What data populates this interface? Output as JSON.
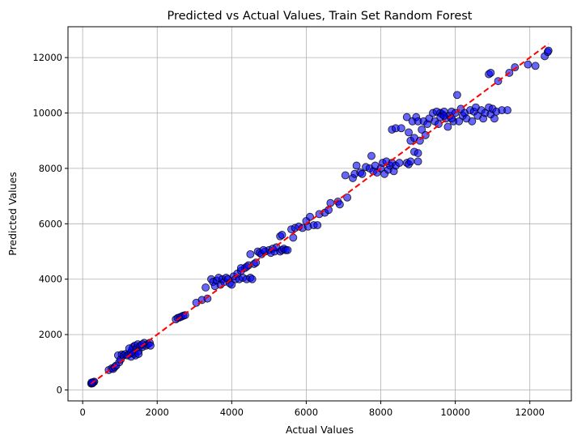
{
  "chart_data": {
    "type": "scatter",
    "title": "Predicted vs Actual Values, Train Set Random Forest",
    "xlabel": "Actual Values",
    "ylabel": "Predicted Values",
    "xlim": [
      -394,
      13114
    ],
    "ylim": [
      -394,
      13114
    ],
    "xticks": [
      0,
      2000,
      4000,
      6000,
      8000,
      10000,
      12000
    ],
    "yticks": [
      0,
      2000,
      4000,
      6000,
      8000,
      10000,
      12000
    ],
    "grid": true,
    "point_color": "#0000ff",
    "point_edge_color": "#000000",
    "point_alpha": 0.6,
    "reference_line": {
      "x": [
        220,
        12500
      ],
      "y": [
        220,
        12500
      ],
      "color": "#ff0000",
      "style": "dashed"
    },
    "points": [
      [
        230,
        230
      ],
      [
        250,
        250
      ],
      [
        270,
        260
      ],
      [
        290,
        280
      ],
      [
        310,
        300
      ],
      [
        260,
        240
      ],
      [
        240,
        270
      ],
      [
        700,
        720
      ],
      [
        780,
        780
      ],
      [
        820,
        760
      ],
      [
        860,
        830
      ],
      [
        900,
        880
      ],
      [
        950,
        1250
      ],
      [
        980,
        1000
      ],
      [
        1020,
        1100
      ],
      [
        1050,
        1280
      ],
      [
        1100,
        1250
      ],
      [
        1150,
        1300
      ],
      [
        1200,
        1250
      ],
      [
        1250,
        1300
      ],
      [
        1300,
        1200
      ],
      [
        1320,
        1450
      ],
      [
        1350,
        1550
      ],
      [
        1380,
        1300
      ],
      [
        1400,
        1600
      ],
      [
        1420,
        1250
      ],
      [
        1450,
        1500
      ],
      [
        1480,
        1650
      ],
      [
        1500,
        1400
      ],
      [
        1550,
        1600
      ],
      [
        1600,
        1550
      ],
      [
        1650,
        1700
      ],
      [
        1700,
        1600
      ],
      [
        1750,
        1650
      ],
      [
        1800,
        1700
      ],
      [
        1820,
        1600
      ],
      [
        1300,
        1350
      ],
      [
        1250,
        1500
      ],
      [
        1500,
        1300
      ],
      [
        1600,
        1650
      ],
      [
        2500,
        2550
      ],
      [
        2550,
        2600
      ],
      [
        2600,
        2620
      ],
      [
        2650,
        2650
      ],
      [
        2700,
        2680
      ],
      [
        2750,
        2700
      ],
      [
        3050,
        3150
      ],
      [
        3200,
        3250
      ],
      [
        3300,
        3700
      ],
      [
        3350,
        3300
      ],
      [
        3450,
        4000
      ],
      [
        3500,
        3900
      ],
      [
        3550,
        3750
      ],
      [
        3600,
        3950
      ],
      [
        3650,
        4050
      ],
      [
        3700,
        3800
      ],
      [
        3750,
        4000
      ],
      [
        3800,
        3900
      ],
      [
        3850,
        4050
      ],
      [
        3900,
        4000
      ],
      [
        3950,
        3850
      ],
      [
        4000,
        3800
      ],
      [
        4050,
        4100
      ],
      [
        4100,
        4000
      ],
      [
        4150,
        4200
      ],
      [
        4200,
        4000
      ],
      [
        4250,
        4300
      ],
      [
        4300,
        4050
      ],
      [
        4350,
        4400
      ],
      [
        4400,
        4000
      ],
      [
        4450,
        4500
      ],
      [
        4500,
        4050
      ],
      [
        4550,
        4000
      ],
      [
        4250,
        4400
      ],
      [
        4400,
        4450
      ],
      [
        4500,
        4900
      ],
      [
        4600,
        4550
      ],
      [
        4650,
        4600
      ],
      [
        4700,
        5000
      ],
      [
        4750,
        4950
      ],
      [
        4800,
        4900
      ],
      [
        4900,
        5000
      ],
      [
        5000,
        5050
      ],
      [
        5050,
        4950
      ],
      [
        5100,
        5100
      ],
      [
        5150,
        5000
      ],
      [
        5200,
        5150
      ],
      [
        5300,
        5000
      ],
      [
        5350,
        5050
      ],
      [
        5400,
        5100
      ],
      [
        5450,
        5050
      ],
      [
        5300,
        5550
      ],
      [
        5350,
        5600
      ],
      [
        5500,
        5050
      ],
      [
        4850,
        5050
      ],
      [
        5600,
        5800
      ],
      [
        5650,
        5500
      ],
      [
        5700,
        5850
      ],
      [
        5800,
        5900
      ],
      [
        5900,
        5850
      ],
      [
        6000,
        6100
      ],
      [
        6050,
        5900
      ],
      [
        6100,
        6250
      ],
      [
        6200,
        5950
      ],
      [
        6300,
        5950
      ],
      [
        6350,
        6350
      ],
      [
        6500,
        6400
      ],
      [
        6600,
        6500
      ],
      [
        6650,
        6750
      ],
      [
        6850,
        6800
      ],
      [
        6900,
        6700
      ],
      [
        7100,
        6950
      ],
      [
        7050,
        7750
      ],
      [
        7250,
        7650
      ],
      [
        7300,
        7800
      ],
      [
        7350,
        8100
      ],
      [
        7450,
        7850
      ],
      [
        7500,
        7800
      ],
      [
        7600,
        8050
      ],
      [
        7700,
        8000
      ],
      [
        7750,
        8450
      ],
      [
        7800,
        7900
      ],
      [
        7850,
        8100
      ],
      [
        7900,
        7850
      ],
      [
        8000,
        8000
      ],
      [
        8050,
        8200
      ],
      [
        8100,
        7800
      ],
      [
        8150,
        8250
      ],
      [
        8200,
        7950
      ],
      [
        8250,
        8100
      ],
      [
        8300,
        8200
      ],
      [
        8350,
        7900
      ],
      [
        8400,
        8100
      ],
      [
        8500,
        8200
      ],
      [
        8700,
        8200
      ],
      [
        8750,
        8150
      ],
      [
        8800,
        8250
      ],
      [
        8900,
        8600
      ],
      [
        9000,
        8550
      ],
      [
        9000,
        8250
      ],
      [
        8300,
        9400
      ],
      [
        8400,
        9450
      ],
      [
        8550,
        9450
      ],
      [
        8700,
        9850
      ],
      [
        8750,
        9300
      ],
      [
        8800,
        9000
      ],
      [
        8850,
        9700
      ],
      [
        8900,
        9100
      ],
      [
        8950,
        9850
      ],
      [
        9000,
        9700
      ],
      [
        9050,
        9000
      ],
      [
        9100,
        9400
      ],
      [
        9150,
        9700
      ],
      [
        9200,
        9200
      ],
      [
        9250,
        9600
      ],
      [
        9300,
        9800
      ],
      [
        9400,
        10000
      ],
      [
        9450,
        9700
      ],
      [
        9500,
        10050
      ],
      [
        9550,
        9600
      ],
      [
        9600,
        10000
      ],
      [
        9650,
        9950
      ],
      [
        9700,
        10050
      ],
      [
        9750,
        9800
      ],
      [
        9800,
        9500
      ],
      [
        9850,
        9900
      ],
      [
        9900,
        10050
      ],
      [
        9950,
        9700
      ],
      [
        10000,
        10000
      ],
      [
        10050,
        10650
      ],
      [
        10100,
        9700
      ],
      [
        10150,
        10150
      ],
      [
        10200,
        9900
      ],
      [
        10250,
        10000
      ],
      [
        10300,
        9800
      ],
      [
        10400,
        10100
      ],
      [
        10450,
        9700
      ],
      [
        10500,
        10050
      ],
      [
        10550,
        10200
      ],
      [
        10600,
        9900
      ],
      [
        10700,
        10100
      ],
      [
        10750,
        9800
      ],
      [
        10800,
        10000
      ],
      [
        10900,
        10200
      ],
      [
        10950,
        9950
      ],
      [
        11000,
        10150
      ],
      [
        11050,
        9800
      ],
      [
        11100,
        10050
      ],
      [
        11250,
        10100
      ],
      [
        11400,
        10100
      ],
      [
        9600,
        9850
      ],
      [
        9700,
        9900
      ],
      [
        9900,
        9800
      ],
      [
        10900,
        11400
      ],
      [
        10950,
        11450
      ],
      [
        11150,
        11150
      ],
      [
        11450,
        11450
      ],
      [
        11600,
        11650
      ],
      [
        11950,
        11750
      ],
      [
        12150,
        11700
      ],
      [
        12400,
        12050
      ],
      [
        12480,
        12200
      ],
      [
        12500,
        12250
      ]
    ]
  }
}
